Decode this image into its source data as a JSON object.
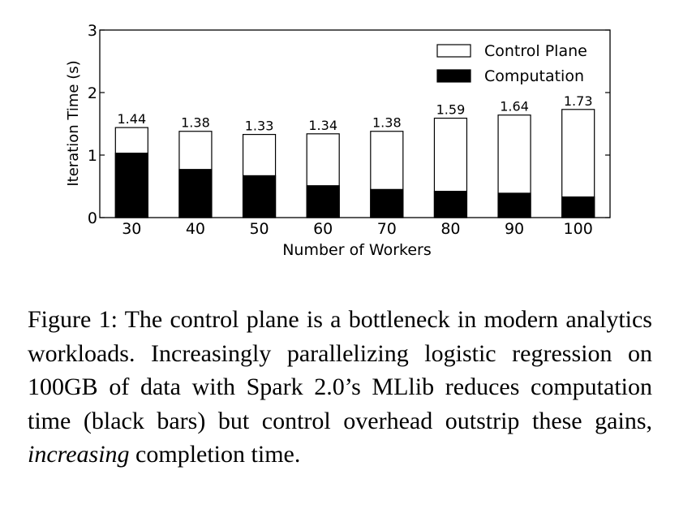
{
  "chart_data": {
    "type": "bar",
    "stacked": true,
    "categories": [
      "30",
      "40",
      "50",
      "60",
      "70",
      "80",
      "90",
      "100"
    ],
    "series": [
      {
        "name": "Computation",
        "color": "#000000",
        "values": [
          1.03,
          0.77,
          0.67,
          0.51,
          0.45,
          0.42,
          0.39,
          0.33
        ]
      },
      {
        "name": "Control Plane",
        "color": "#ffffff",
        "values": [
          0.41,
          0.61,
          0.66,
          0.83,
          0.93,
          1.17,
          1.25,
          1.4
        ]
      }
    ],
    "totals": [
      1.44,
      1.38,
      1.33,
      1.34,
      1.38,
      1.59,
      1.64,
      1.73
    ],
    "total_labels": [
      "1.44",
      "1.38",
      "1.33",
      "1.34",
      "1.38",
      "1.59",
      "1.64",
      "1.73"
    ],
    "xlabel": "Number of Workers",
    "ylabel": "Iteration Time (s)",
    "ylim": [
      0,
      3
    ],
    "yticks": [
      "0",
      "1",
      "2",
      "3"
    ],
    "legend": {
      "position": "top-right",
      "entries": [
        "Control Plane",
        "Computation"
      ]
    }
  },
  "caption": {
    "label": "Figure 1:",
    "part1": "The control plane is a bottleneck in modern analytics workloads. Increasingly parallelizing logistic regression on 100GB of data with Spark 2.0’s MLlib reduces computation time (black bars) but control overhead outstrip these gains,",
    "emphasis": "increasing",
    "part2": "completion time."
  }
}
